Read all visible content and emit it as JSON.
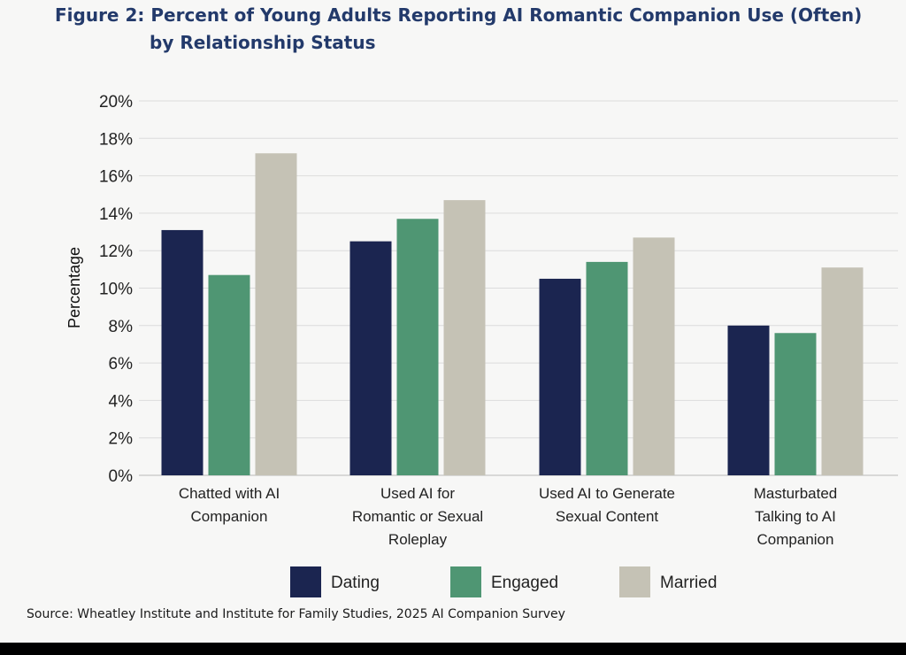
{
  "title": {
    "prefix": "Figure 2:",
    "line1": "Percent of Young Adults Reporting AI Romantic Companion Use (Often)",
    "line2": "by Relationship Status"
  },
  "source": "Source: Wheatley Institute and Institute for Family Studies, 2025 AI Companion Survey",
  "chart_data": {
    "type": "bar",
    "title": "Figure 2: Percent of Young Adults Reporting AI Romantic Companion Use (Often) by Relationship Status",
    "ylabel": "Percentage",
    "xlabel": "",
    "ylim": [
      0,
      20
    ],
    "yticks": [
      "0%",
      "2%",
      "4%",
      "6%",
      "8%",
      "10%",
      "12%",
      "14%",
      "16%",
      "18%",
      "20%"
    ],
    "grid": true,
    "legend_position": "bottom",
    "categories": [
      [
        "Chatted with AI",
        "Companion"
      ],
      [
        "Used AI for",
        "Romantic or Sexual",
        "Roleplay"
      ],
      [
        "Used AI to Generate",
        "Sexual Content"
      ],
      [
        "Masturbated",
        "Talking to AI",
        "Companion"
      ]
    ],
    "series": [
      {
        "name": "Dating",
        "color": "#1b2550",
        "values": [
          13.1,
          12.5,
          10.5,
          8.0
        ]
      },
      {
        "name": "Engaged",
        "color": "#4f9673",
        "values": [
          10.7,
          13.7,
          11.4,
          7.6
        ]
      },
      {
        "name": "Married",
        "color": "#c5c2b5",
        "values": [
          17.2,
          14.7,
          12.7,
          11.1
        ]
      }
    ]
  }
}
